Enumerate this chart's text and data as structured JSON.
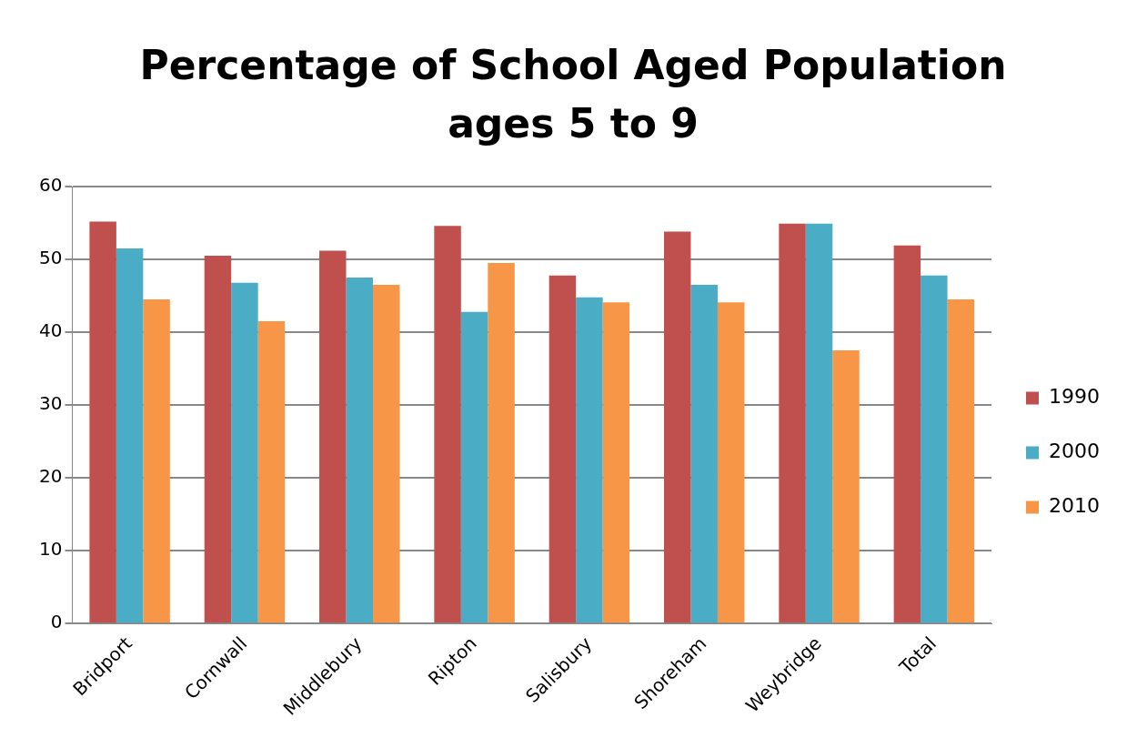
{
  "chart_data": {
    "type": "bar",
    "title": "Percentage of School Aged Population ages 5 to 9",
    "categories": [
      "Bridport",
      "Cornwall",
      "Middlebury",
      "Ripton",
      "Salisbury",
      "Shoreham",
      "Weybridge",
      "Total"
    ],
    "series": [
      {
        "name": "1990",
        "color": "#c0504d",
        "values": [
          55.2,
          50.5,
          51.2,
          54.6,
          47.8,
          53.8,
          54.9,
          51.9
        ]
      },
      {
        "name": "2000",
        "color": "#4bacc6",
        "values": [
          51.5,
          46.8,
          47.5,
          42.8,
          44.8,
          46.5,
          54.9,
          47.8
        ]
      },
      {
        "name": "2010",
        "color": "#f79646",
        "values": [
          44.5,
          41.5,
          46.5,
          49.5,
          44.1,
          44.1,
          37.5,
          44.5
        ]
      }
    ],
    "ylim": [
      0,
      60
    ],
    "yticks": [
      0,
      10,
      20,
      30,
      40,
      50,
      60
    ],
    "grid": "y",
    "legend": "right"
  }
}
